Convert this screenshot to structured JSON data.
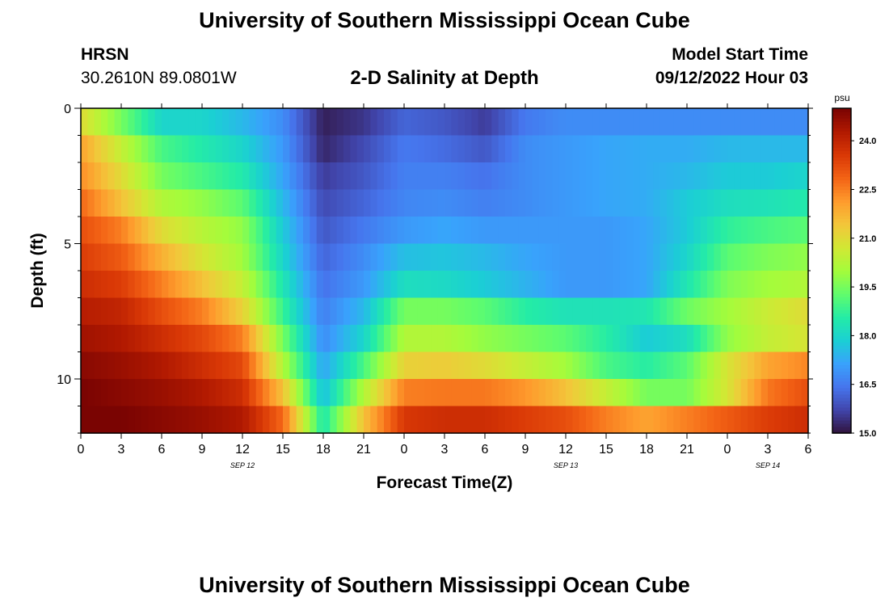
{
  "header": {
    "title": "University of Southern Mississippi Ocean Cube",
    "station": "HRSN",
    "coordinates": "30.2610N  89.0801W",
    "subtitle": "2-D Salinity at Depth",
    "model_start_label": "Model Start Time",
    "model_start_value": "09/12/2022 Hour 03"
  },
  "footer": {
    "title": "University of Southern Mississippi Ocean Cube"
  },
  "chart_data": {
    "type": "heatmap",
    "title": "2-D Salinity at Depth",
    "xlabel": "Forecast Time(Z)",
    "ylabel": "Depth (ft)",
    "colorbar_label": "psu",
    "colorbar_ticks": [
      15.0,
      16.5,
      18.0,
      19.5,
      21.0,
      22.5,
      24.0
    ],
    "colorbar_range": [
      15.0,
      25.0
    ],
    "y_ticks": [
      0,
      5,
      10
    ],
    "y_range": [
      0,
      12
    ],
    "x_range": [
      0,
      54
    ],
    "x_tick_values": [
      0,
      3,
      6,
      9,
      12,
      15,
      18,
      21,
      24,
      27,
      30,
      33,
      36,
      39,
      42,
      45,
      48,
      51,
      54
    ],
    "x_tick_labels": [
      "0",
      "3",
      "6",
      "9",
      "12",
      "15",
      "18",
      "21",
      "0",
      "3",
      "6",
      "9",
      "12",
      "15",
      "18",
      "21",
      "0",
      "3",
      "6"
    ],
    "date_labels": [
      {
        "label": "SEP 12",
        "hour": 12
      },
      {
        "label": "SEP 13",
        "hour": 36
      },
      {
        "label": "SEP 14",
        "hour": 51
      }
    ],
    "grid": false,
    "depths": [
      0.5,
      1.5,
      2.5,
      3.5,
      4.5,
      5.5,
      6.5,
      7.5,
      8.5,
      9.5,
      10.5,
      11.5
    ],
    "time_hours": [
      0,
      3,
      6,
      9,
      12,
      15,
      18,
      21,
      24,
      27,
      30,
      33,
      36,
      39,
      42,
      45,
      48,
      51,
      54
    ],
    "salinity_psu": [
      [
        21.0,
        19.5,
        18.0,
        18.0,
        17.5,
        16.8,
        15.2,
        15.5,
        16.2,
        16.0,
        15.6,
        16.5,
        16.8,
        16.8,
        16.8,
        16.8,
        16.8,
        16.8,
        16.8
      ],
      [
        22.0,
        20.5,
        19.0,
        18.5,
        18.0,
        17.0,
        15.3,
        15.8,
        16.5,
        16.3,
        16.0,
        16.8,
        17.0,
        17.2,
        17.3,
        17.3,
        17.5,
        17.5,
        17.5
      ],
      [
        22.3,
        21.0,
        19.5,
        19.0,
        18.5,
        17.2,
        15.6,
        16.0,
        16.6,
        16.6,
        16.4,
        16.8,
        17.0,
        17.2,
        17.3,
        17.5,
        17.8,
        17.8,
        18.0
      ],
      [
        22.8,
        21.5,
        20.2,
        19.8,
        19.2,
        17.5,
        15.8,
        16.2,
        16.7,
        16.8,
        16.6,
        16.8,
        17.0,
        17.2,
        17.3,
        17.8,
        18.2,
        18.3,
        18.5
      ],
      [
        23.2,
        22.5,
        21.0,
        20.3,
        19.8,
        17.8,
        16.0,
        16.5,
        17.0,
        17.2,
        17.0,
        17.0,
        17.0,
        17.0,
        17.2,
        17.8,
        18.7,
        19.0,
        19.2
      ],
      [
        23.5,
        23.0,
        21.8,
        20.8,
        20.0,
        18.0,
        16.2,
        16.8,
        17.6,
        17.7,
        17.5,
        17.2,
        17.0,
        17.0,
        17.2,
        18.0,
        19.2,
        19.6,
        19.8
      ],
      [
        23.8,
        23.5,
        22.5,
        21.5,
        20.5,
        18.4,
        16.4,
        17.0,
        18.2,
        18.1,
        17.8,
        17.4,
        17.0,
        17.0,
        17.2,
        18.4,
        19.6,
        20.0,
        20.2
      ],
      [
        24.2,
        24.0,
        23.2,
        22.5,
        21.2,
        18.8,
        16.6,
        17.5,
        19.5,
        19.5,
        19.2,
        18.6,
        18.3,
        18.3,
        18.4,
        19.4,
        20.0,
        20.6,
        21.0
      ],
      [
        24.5,
        24.3,
        23.8,
        23.3,
        22.5,
        19.5,
        16.8,
        18.0,
        20.2,
        20.2,
        19.8,
        19.5,
        19.2,
        18.6,
        17.8,
        18.2,
        19.8,
        20.5,
        20.8
      ],
      [
        24.8,
        24.6,
        24.3,
        23.8,
        23.3,
        20.2,
        17.2,
        19.0,
        21.2,
        21.3,
        21.0,
        20.5,
        20.0,
        19.0,
        18.6,
        19.2,
        20.8,
        22.0,
        22.4
      ],
      [
        25.0,
        24.8,
        24.6,
        24.3,
        23.8,
        21.5,
        17.6,
        20.2,
        22.5,
        22.6,
        22.6,
        22.2,
        21.5,
        20.5,
        19.5,
        19.5,
        20.8,
        22.6,
        23.2
      ],
      [
        25.2,
        25.0,
        24.8,
        24.6,
        24.3,
        22.8,
        18.4,
        21.5,
        23.6,
        23.8,
        23.8,
        23.5,
        23.2,
        22.5,
        22.0,
        22.5,
        23.0,
        23.5,
        23.8
      ]
    ]
  },
  "colors": {
    "colormap": [
      "#30123b",
      "#4145ab",
      "#4675ed",
      "#39a2fc",
      "#1bcfd4",
      "#24eca6",
      "#61fc6c",
      "#a4fc3b",
      "#d1e834",
      "#f3c63a",
      "#fe9b2d",
      "#f36315",
      "#d93806",
      "#b11901",
      "#7a0402"
    ]
  }
}
